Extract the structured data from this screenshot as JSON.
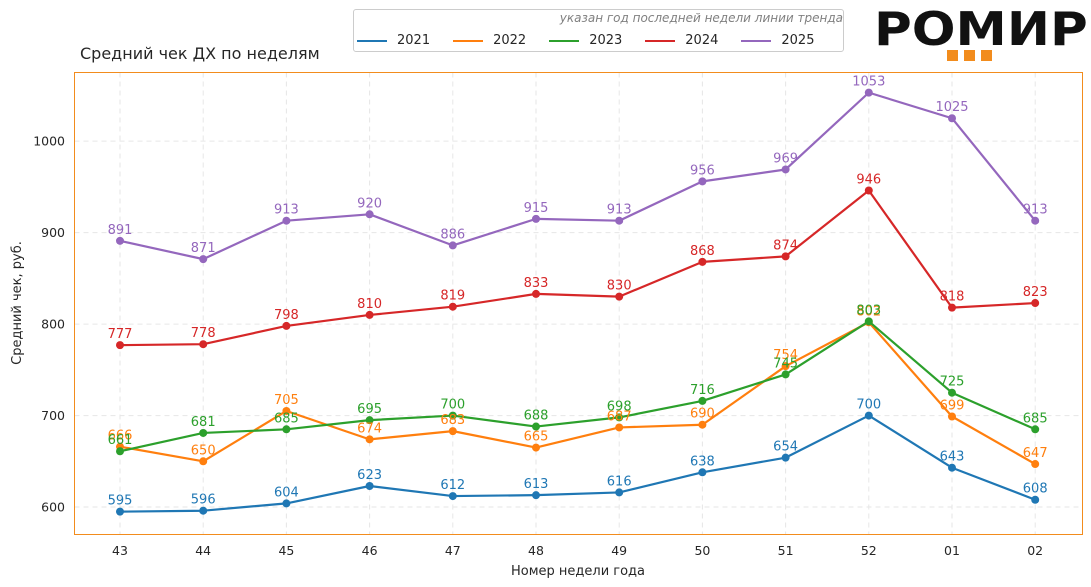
{
  "chart_data": {
    "type": "line",
    "title": "Средний чек ДХ по неделям",
    "xlabel": "Номер недели года",
    "ylabel": "Средний чек, руб.",
    "categories": [
      "43",
      "44",
      "45",
      "46",
      "47",
      "48",
      "49",
      "50",
      "51",
      "52",
      "01",
      "02"
    ],
    "yticks": [
      600,
      700,
      800,
      900,
      1000
    ],
    "ylim": [
      570,
      1075
    ],
    "grid": true,
    "legend_note": "указан год последней недели линии тренда",
    "legend_position": "top",
    "series": [
      {
        "name": "2021",
        "color": "#1f77b4",
        "values": [
          595,
          596,
          604,
          623,
          612,
          613,
          616,
          638,
          654,
          700,
          643,
          608
        ]
      },
      {
        "name": "2022",
        "color": "#ff7f0e",
        "values": [
          666,
          650,
          705,
          674,
          683,
          665,
          687,
          690,
          754,
          802,
          699,
          647
        ]
      },
      {
        "name": "2023",
        "color": "#2ca02c",
        "values": [
          661,
          681,
          685,
          695,
          700,
          688,
          698,
          716,
          745,
          803,
          725,
          685
        ]
      },
      {
        "name": "2024",
        "color": "#d62728",
        "values": [
          777,
          778,
          798,
          810,
          819,
          833,
          830,
          868,
          874,
          946,
          818,
          823
        ]
      },
      {
        "name": "2025",
        "color": "#9467bd",
        "values": [
          891,
          871,
          913,
          920,
          886,
          915,
          913,
          956,
          969,
          1053,
          1025,
          913
        ]
      }
    ]
  },
  "logo": {
    "text": "РОМИР",
    "square_color": "#f28c1d"
  },
  "frame_color": "#f28c1d"
}
